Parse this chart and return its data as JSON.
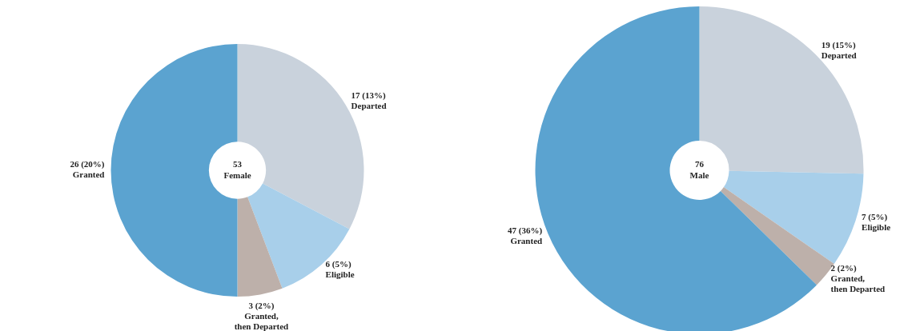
{
  "chart_data": [
    {
      "type": "donut",
      "categories": [
        "Departed",
        "Eligible",
        "Granted, then Departed",
        "Granted"
      ],
      "values": [
        17,
        6,
        3,
        26
      ],
      "colors": [
        "#c9d2dc",
        "#a8cfea",
        "#bdb0aa",
        "#5ba3d0"
      ],
      "value_labels": [
        "17 (13%)",
        "6 (5%)",
        "3 (2%)",
        "26 (20%)"
      ],
      "annotations": [
        "53",
        "Female"
      ]
    },
    {
      "type": "donut",
      "categories": [
        "Departed",
        "Eligible",
        "Granted, then Departed",
        "Granted"
      ],
      "values": [
        19,
        7,
        2,
        47
      ],
      "colors": [
        "#c9d2dc",
        "#a8cfea",
        "#bdb0aa",
        "#5ba3d0"
      ],
      "value_labels": [
        "19 (15%)",
        "7 (5%)",
        "2 (2%)",
        "47 (36%)"
      ],
      "annotations": [
        "76",
        "Male"
      ]
    }
  ]
}
